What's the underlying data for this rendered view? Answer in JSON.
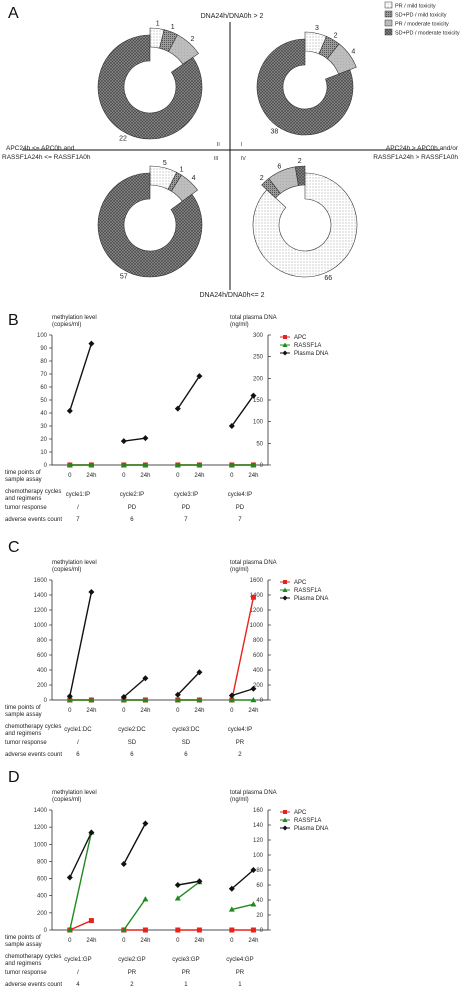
{
  "panelA": {
    "letter": "A",
    "legend": [
      {
        "label": "PR / mild toxicity",
        "pattern": "p1"
      },
      {
        "label": "SD+PD / mild toxicity",
        "pattern": "p2"
      },
      {
        "label": "PR / moderate toxicity",
        "pattern": "p3"
      },
      {
        "label": "SD+PD / moderate toxicity",
        "pattern": "p4"
      }
    ],
    "axis_top": "DNA24h/DNA0h > 2",
    "axis_bottom": "DNA24h/DNA0h<= 2",
    "axis_left_1": "APC24h <= APC0h and",
    "axis_left_2": "RASSF1A24h <= RASSF1A0h",
    "axis_right_1": "APC24h > APC0h and/or",
    "axis_right_2": "RASSF1A24h > RASSF1A0h",
    "quadrants": [
      "II",
      "I",
      "III",
      "IV"
    ]
  },
  "chart_data": [
    {
      "type": "pie",
      "panel": "A",
      "donuts": [
        {
          "quadrant": "II",
          "categories": [
            "PR / mild toxicity",
            "SD+PD / mild toxicity",
            "PR / moderate toxicity",
            "SD+PD / moderate toxicity"
          ],
          "values": [
            1,
            1,
            2,
            22
          ]
        },
        {
          "quadrant": "I",
          "categories": [
            "PR / mild toxicity",
            "SD+PD / mild toxicity",
            "PR / moderate toxicity",
            "SD+PD / moderate toxicity"
          ],
          "values": [
            3,
            2,
            4,
            38
          ]
        },
        {
          "quadrant": "III",
          "categories": [
            "PR / mild toxicity",
            "SD+PD / mild toxicity",
            "PR / moderate toxicity",
            "SD+PD / moderate toxicity"
          ],
          "values": [
            5,
            1,
            4,
            57
          ]
        },
        {
          "quadrant": "IV",
          "categories": [
            "PR / mild toxicity",
            "SD+PD / mild toxicity",
            "PR / moderate toxicity",
            "SD+PD / moderate toxicity"
          ],
          "values": [
            66,
            2,
            6,
            2
          ]
        }
      ]
    },
    {
      "type": "line",
      "panel": "B",
      "ylabel_left": "methylation level\n(copies/ml)",
      "ylabel_right": "total plasma DNA\n(ng/ml)",
      "ylim_left": [
        0,
        100
      ],
      "yticks_left": [
        0,
        10,
        20,
        30,
        40,
        50,
        60,
        70,
        80,
        90,
        100
      ],
      "ylim_right": [
        0,
        300
      ],
      "yticks_right": [
        0,
        50,
        100,
        150,
        200,
        250,
        300
      ],
      "legend": [
        "APC",
        "RASSF1A",
        "Plasma DNA"
      ],
      "cycles": [
        "cycle1:IP",
        "cycle2:IP",
        "cycle3:IP",
        "cycle4:IP"
      ],
      "tumor_response": [
        "/",
        "PD",
        "PD",
        "PD"
      ],
      "adverse_events": [
        "7",
        "6",
        "7",
        "7"
      ],
      "series": [
        {
          "name": "APC",
          "axis": "left",
          "values": [
            [
              0,
              0
            ],
            [
              0,
              0
            ],
            [
              0,
              0
            ],
            [
              0,
              0
            ]
          ]
        },
        {
          "name": "RASSF1A",
          "axis": "left",
          "values": [
            [
              0,
              0
            ],
            [
              0,
              0
            ],
            [
              0,
              0
            ],
            [
              0,
              0
            ]
          ]
        },
        {
          "name": "Plasma DNA",
          "axis": "right",
          "values": [
            [
              125,
              280
            ],
            [
              55,
              62
            ],
            [
              130,
              205
            ],
            [
              90,
              160
            ]
          ]
        }
      ]
    },
    {
      "type": "line",
      "panel": "C",
      "ylabel_left": "methylation level\n(copies/ml)",
      "ylabel_right": "total plasma DNA\n(ng/ml)",
      "ylim_left": [
        0,
        1600
      ],
      "yticks_left": [
        0,
        200,
        400,
        600,
        800,
        1000,
        1200,
        1400,
        1600
      ],
      "ylim_right": [
        0,
        1600
      ],
      "yticks_right": [
        0,
        200,
        400,
        600,
        800,
        1000,
        1200,
        1400,
        1600
      ],
      "legend": [
        "APC",
        "RASSF1A",
        "Plasma DNA"
      ],
      "cycles": [
        "cycle1:DC",
        "cycle2:DC",
        "cycle3:DC",
        "cycle4:IP"
      ],
      "tumor_response": [
        "/",
        "SD",
        "SD",
        "PR"
      ],
      "adverse_events": [
        "6",
        "6",
        "6",
        "2"
      ],
      "series": [
        {
          "name": "APC",
          "axis": "left",
          "values": [
            [
              0,
              0
            ],
            [
              0,
              0
            ],
            [
              0,
              0
            ],
            [
              0,
              1370
            ]
          ]
        },
        {
          "name": "RASSF1A",
          "axis": "left",
          "values": [
            [
              0,
              0
            ],
            [
              0,
              0
            ],
            [
              0,
              0
            ],
            [
              0,
              0
            ]
          ]
        },
        {
          "name": "Plasma DNA",
          "axis": "right",
          "values": [
            [
              50,
              1440
            ],
            [
              40,
              290
            ],
            [
              70,
              370
            ],
            [
              60,
              150
            ]
          ]
        }
      ]
    },
    {
      "type": "line",
      "panel": "D",
      "ylabel_left": "methylation level\n(copies/ml)",
      "ylabel_right": "total plasma DNA\n(ng/ml)",
      "ylim_left": [
        0,
        1400
      ],
      "yticks_left": [
        0,
        200,
        400,
        600,
        800,
        1000,
        1200,
        1400
      ],
      "ylim_right": [
        0,
        160
      ],
      "yticks_right": [
        0,
        20,
        40,
        60,
        80,
        100,
        120,
        140,
        160
      ],
      "legend": [
        "APC",
        "RASSF1A",
        "Plasma DNA"
      ],
      "cycles": [
        "cycle1:GP",
        "cycle2:GP",
        "cycle3:GP",
        "cycle4:GP"
      ],
      "tumor_response": [
        "/",
        "PR",
        "PR",
        "PR"
      ],
      "adverse_events": [
        "4",
        "2",
        "1",
        "1"
      ],
      "series": [
        {
          "name": "APC",
          "axis": "left",
          "values": [
            [
              0,
              110
            ],
            [
              0,
              0
            ],
            [
              0,
              0
            ],
            [
              0,
              0
            ]
          ]
        },
        {
          "name": "RASSF1A",
          "axis": "left",
          "values": [
            [
              0,
              1140
            ],
            [
              0,
              360
            ],
            [
              370,
              560
            ],
            [
              240,
              300
            ]
          ]
        },
        {
          "name": "Plasma DNA",
          "axis": "right",
          "values": [
            [
              70,
              130
            ],
            [
              88,
              142
            ],
            [
              60,
              65
            ],
            [
              55,
              80
            ]
          ]
        }
      ]
    }
  ],
  "row_labels": {
    "time_points": "time points of\nsample assay",
    "t0": "0",
    "t24": "24h",
    "chemo": "chemotherapy cycles\nand regimens",
    "response": "tumor response",
    "adverse": "adverse events count"
  },
  "colors": {
    "APC": "#e8231c",
    "RASSF1A": "#1f8a1f",
    "Plasma DNA": "#111111"
  }
}
